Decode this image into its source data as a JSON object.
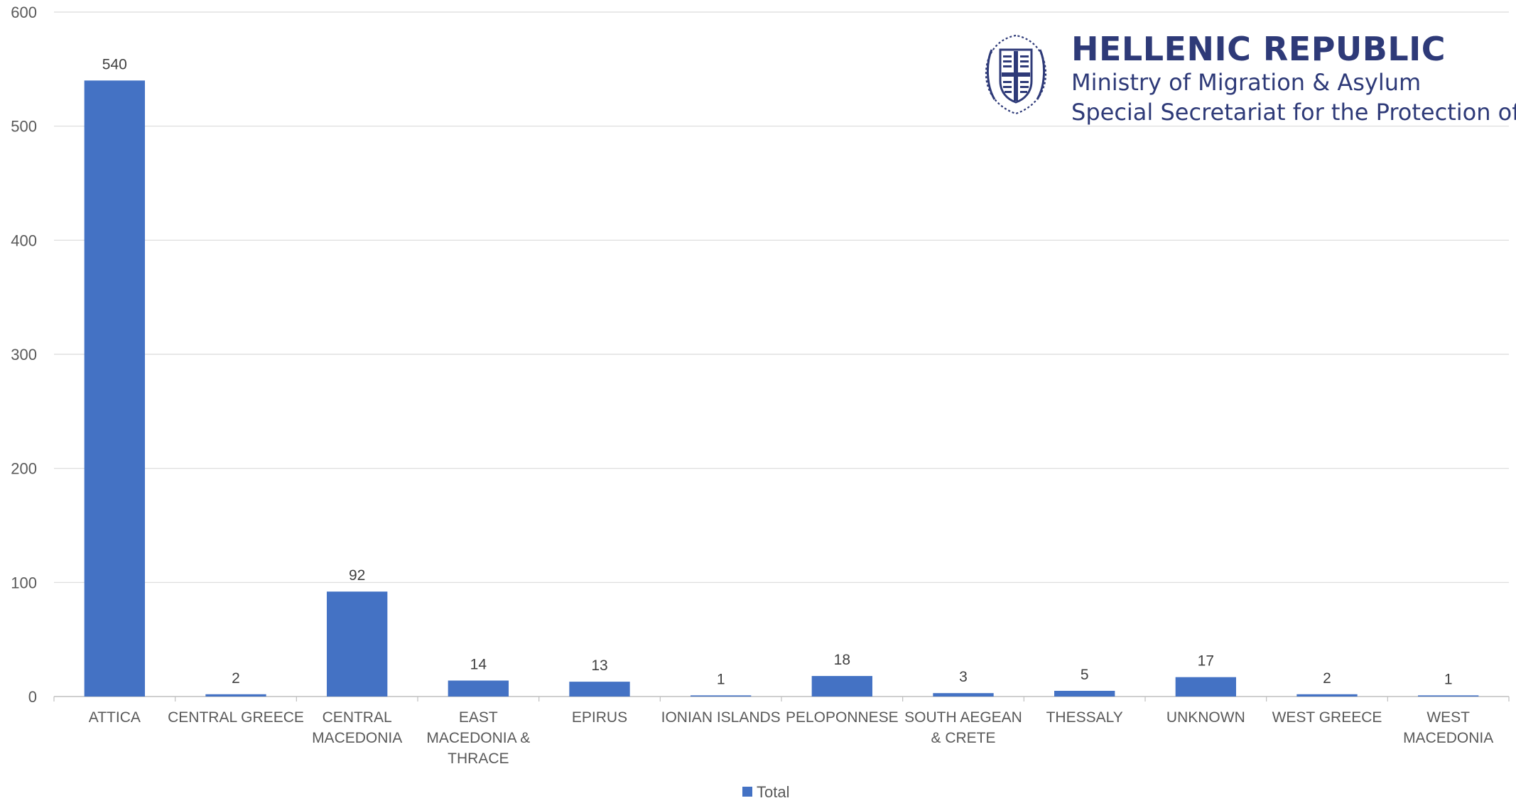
{
  "logo": {
    "title": "HELLENIC REPUBLIC",
    "line1": "Ministry of Migration & Asylum",
    "line2": "Special Secretariat for the Protection of UAMs"
  },
  "chart_data": {
    "type": "bar",
    "categories": [
      [
        "ATTICA"
      ],
      [
        "CENTRAL GREECE"
      ],
      [
        "CENTRAL",
        "MACEDONIA"
      ],
      [
        "EAST",
        "MACEDONIA &",
        "THRACE"
      ],
      [
        "EPIRUS"
      ],
      [
        "IONIAN ISLANDS"
      ],
      [
        "PELOPONNESE"
      ],
      [
        "SOUTH AEGEAN",
        "& CRETE"
      ],
      [
        "THESSALY"
      ],
      [
        "UNKNOWN"
      ],
      [
        "WEST GREECE"
      ],
      [
        "WEST",
        "MACEDONIA"
      ]
    ],
    "series": [
      {
        "name": "Total",
        "values": [
          540,
          2,
          92,
          14,
          13,
          1,
          18,
          3,
          5,
          17,
          2,
          1
        ],
        "color": "#4472c4"
      }
    ],
    "ylim": [
      0,
      600
    ],
    "yticks": [
      0,
      100,
      200,
      300,
      400,
      500,
      600
    ],
    "grid": true,
    "legend": "bottom",
    "data_labels": true
  }
}
